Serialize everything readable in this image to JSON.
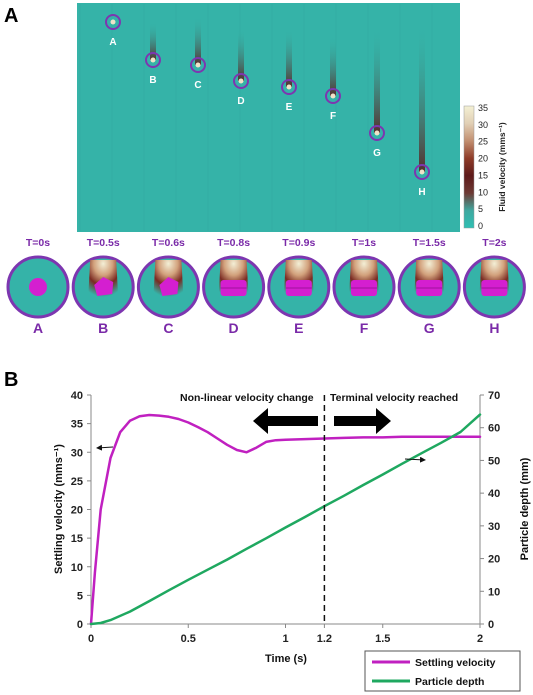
{
  "panel_a": {
    "label": "A",
    "particles": [
      "A",
      "B",
      "C",
      "D",
      "E",
      "F",
      "G",
      "H"
    ],
    "colorbar": {
      "label": "Fluid velocity (mms⁻¹)",
      "ticks": [
        "35",
        "30",
        "25",
        "20",
        "15",
        "10",
        "5",
        "0"
      ],
      "colors": [
        "#f4f1d4",
        "#e1cfb5",
        "#c28f70",
        "#8e3b28",
        "#5e1a1a",
        "#6d3a34",
        "#3fa8a0",
        "#2fbfb3"
      ]
    },
    "snapshots": [
      {
        "time": "T=0s",
        "letter": "A"
      },
      {
        "time": "T=0.5s",
        "letter": "B"
      },
      {
        "time": "T=0.6s",
        "letter": "C"
      },
      {
        "time": "T=0.8s",
        "letter": "D"
      },
      {
        "time": "T=0.9s",
        "letter": "E"
      },
      {
        "time": "T=1s",
        "letter": "F"
      },
      {
        "time": "T=1.5s",
        "letter": "G"
      },
      {
        "time": "T=2s",
        "letter": "H"
      }
    ],
    "colors": {
      "fluid": "#35b3a8",
      "particle": "#d41fd0",
      "ring": "#7d36b0"
    }
  },
  "chart_data": {
    "type": "line",
    "panel_label": "B",
    "xlabel": "Time (s)",
    "ylabel": "Settling velocity (mms⁻¹)",
    "y2label": "Particle depth (mm)",
    "xlim": [
      0,
      2
    ],
    "ylim": [
      0,
      40
    ],
    "y2lim": [
      0,
      70
    ],
    "xticks": [
      "0",
      "0.5",
      "1",
      "1.2",
      "1.5",
      "2"
    ],
    "xtick_values": [
      0,
      0.5,
      1,
      1.2,
      1.5,
      2
    ],
    "yticks": [
      "0",
      "5",
      "10",
      "15",
      "20",
      "25",
      "30",
      "35",
      "40"
    ],
    "y2ticks": [
      "0",
      "10",
      "20",
      "30",
      "40",
      "50",
      "60",
      "70"
    ],
    "grid": false,
    "legend": "bottom-right",
    "vline_x": 1.2,
    "annotations": {
      "left": "Non-linear velocity change",
      "right": "Terminal velocity reached"
    },
    "series": [
      {
        "name": "Settling velocity",
        "axis": "left",
        "color": "#c020c0",
        "x": [
          0,
          0.02,
          0.05,
          0.1,
          0.15,
          0.2,
          0.25,
          0.3,
          0.35,
          0.4,
          0.45,
          0.5,
          0.55,
          0.6,
          0.65,
          0.7,
          0.75,
          0.8,
          0.85,
          0.9,
          0.95,
          1.0,
          1.1,
          1.2,
          1.3,
          1.4,
          1.5,
          1.6,
          1.7,
          1.8,
          1.9,
          2.0
        ],
        "values": [
          0,
          9,
          20,
          29,
          33.5,
          35.5,
          36.3,
          36.5,
          36.4,
          36.2,
          35.8,
          35.2,
          34.4,
          33.5,
          32.4,
          31.3,
          30.4,
          30.0,
          30.8,
          31.8,
          32.1,
          32.2,
          32.3,
          32.4,
          32.5,
          32.6,
          32.6,
          32.7,
          32.7,
          32.7,
          32.7,
          32.7
        ]
      },
      {
        "name": "Particle depth",
        "axis": "right",
        "color": "#1fa860",
        "x": [
          0,
          0.05,
          0.1,
          0.2,
          0.3,
          0.4,
          0.5,
          0.6,
          0.7,
          0.8,
          0.9,
          1.0,
          1.1,
          1.2,
          1.3,
          1.4,
          1.5,
          1.6,
          1.7,
          1.8,
          1.9,
          2.0
        ],
        "values": [
          0,
          0.3,
          1.2,
          3.8,
          7.0,
          10.3,
          13.5,
          16.6,
          19.7,
          23.0,
          26.2,
          29.5,
          32.7,
          36.0,
          39.2,
          42.5,
          45.7,
          49.0,
          52.2,
          55.4,
          58.7,
          64.0
        ]
      }
    ]
  }
}
